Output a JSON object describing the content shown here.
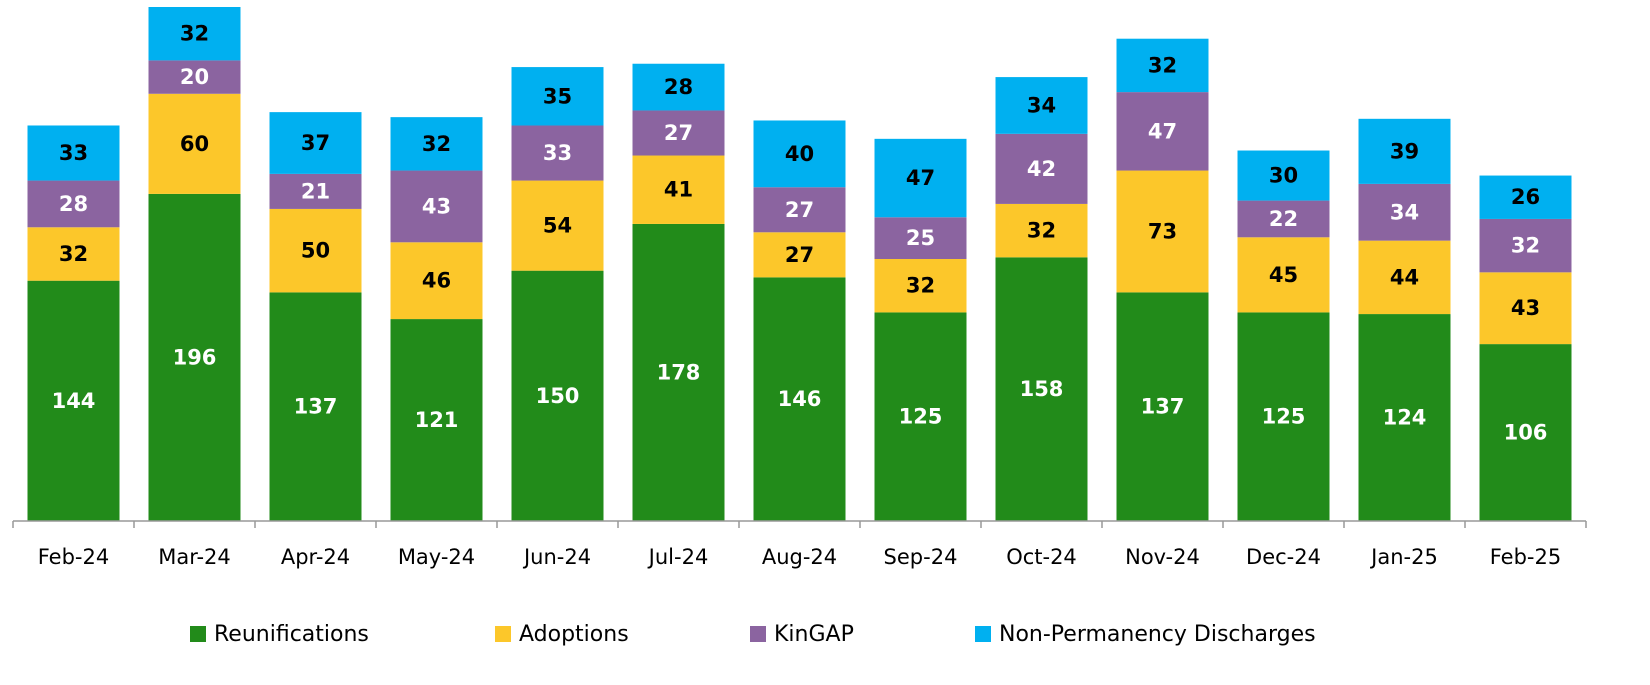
{
  "chart_data": {
    "type": "stacked_bar",
    "categories": [
      "Feb-24",
      "Mar-24",
      "Apr-24",
      "May-24",
      "Jun-24",
      "Jul-24",
      "Aug-24",
      "Sep-24",
      "Oct-24",
      "Nov-24",
      "Dec-24",
      "Jan-25",
      "Feb-25"
    ],
    "series": [
      {
        "name": "Reunifications",
        "color": "#228b1a",
        "label_color": "#ffffff",
        "values": [
          144,
          196,
          137,
          121,
          150,
          178,
          146,
          125,
          158,
          137,
          125,
          124,
          106
        ]
      },
      {
        "name": "Adoptions",
        "color": "#fcc72a",
        "label_color": "#000000",
        "values": [
          32,
          60,
          50,
          46,
          54,
          41,
          27,
          32,
          32,
          73,
          45,
          44,
          43
        ]
      },
      {
        "name": "KinGAP",
        "color": "#8b64a0",
        "label_color": "#ffffff",
        "values": [
          28,
          20,
          21,
          43,
          33,
          27,
          27,
          25,
          42,
          47,
          22,
          34,
          32
        ]
      },
      {
        "name": "Non-Permanency Discharges",
        "color": "#00b0f0",
        "label_color": "#000000",
        "values": [
          33,
          32,
          37,
          32,
          35,
          28,
          40,
          47,
          34,
          32,
          30,
          39,
          26
        ]
      }
    ],
    "legend": "bottom"
  }
}
